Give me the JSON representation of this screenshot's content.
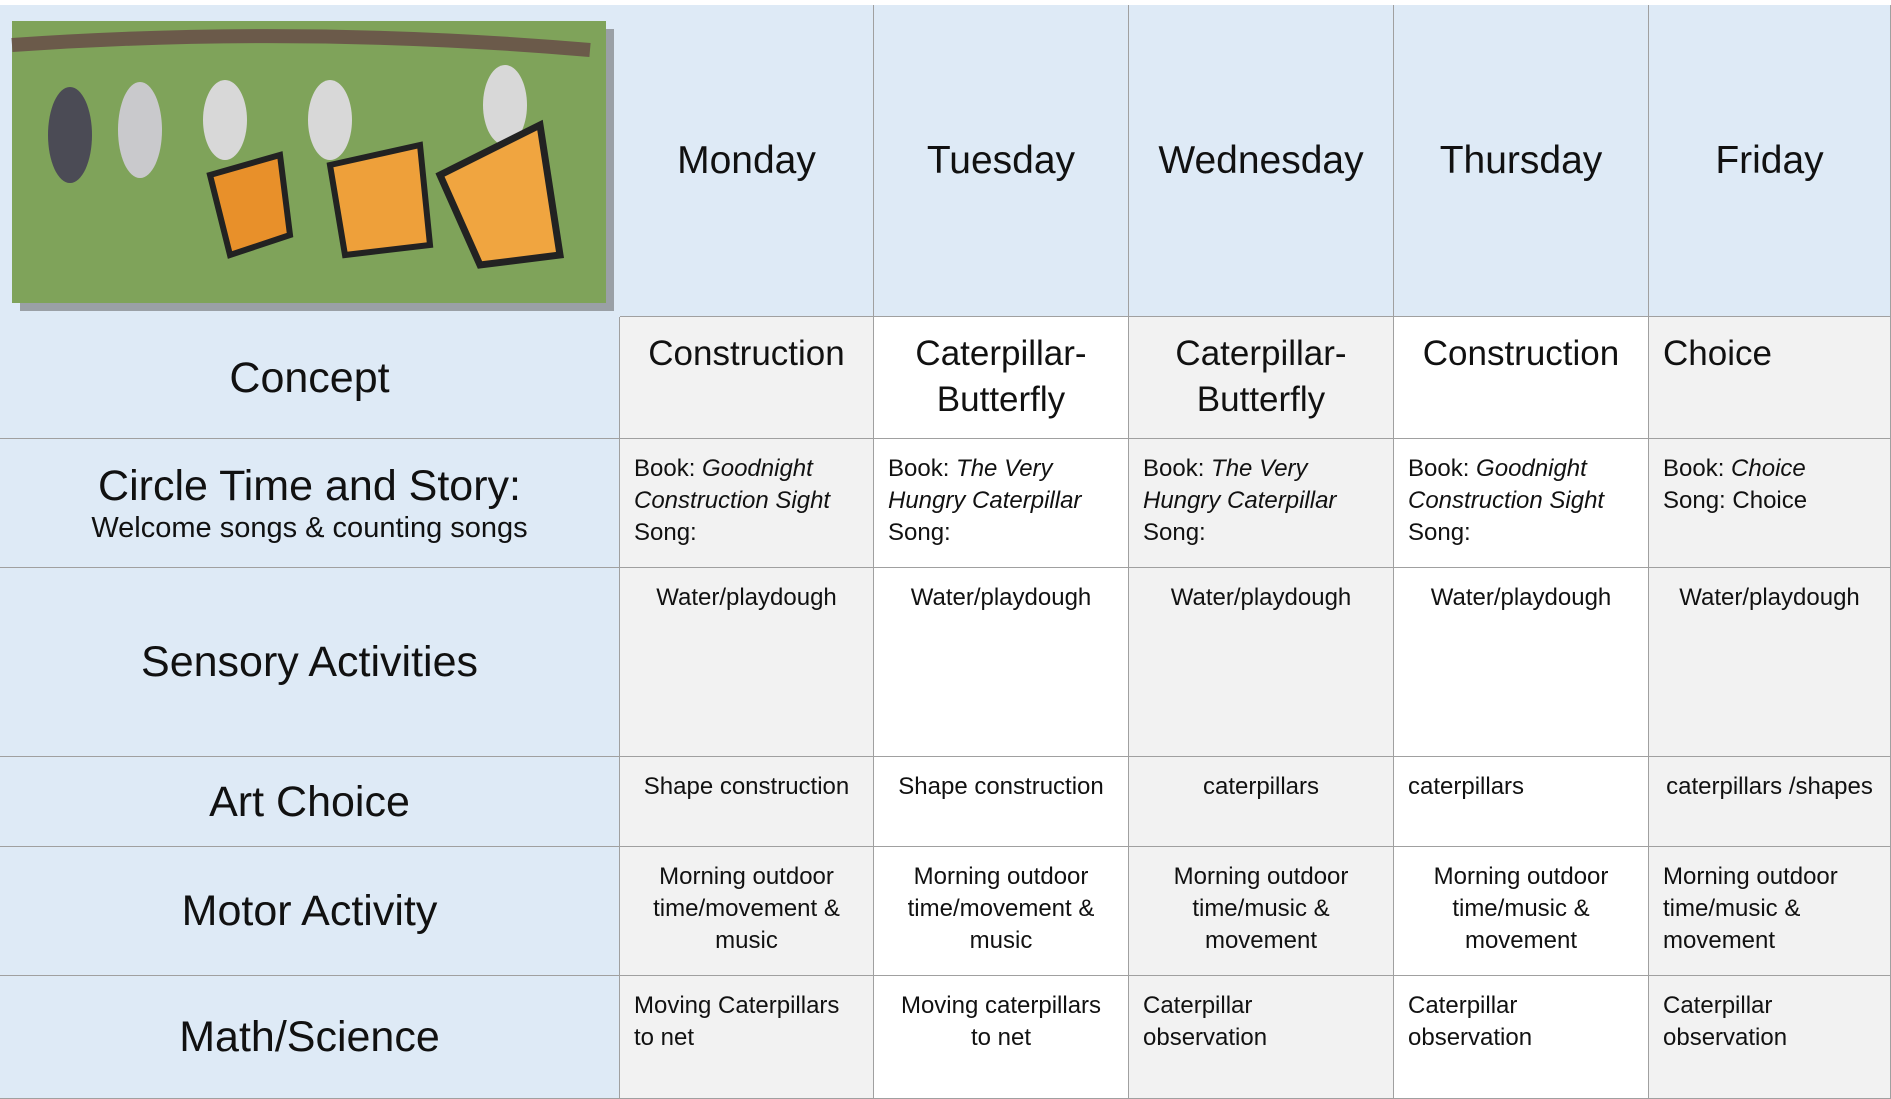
{
  "header": {
    "days": [
      "Monday",
      "Tuesday",
      "Wednesday",
      "Thursday",
      "Friday"
    ]
  },
  "rows": [
    {
      "label": "Concept",
      "cells": [
        "Construction",
        "Caterpillar-Butterfly",
        "Caterpillar-Butterfly",
        "Construction",
        "Choice"
      ]
    },
    {
      "label": "Circle Time and Story:",
      "sublabel": "Welcome songs & counting songs",
      "cells": [
        {
          "book_label": "Book:",
          "book": "Goodnight Construction Sight",
          "song_label": "Song:"
        },
        {
          "book_label": "Book:",
          "book": "The Very Hungry Caterpillar",
          "song_label": "Song:"
        },
        {
          "book_label": "Book:",
          "book": "The Very Hungry Caterpillar",
          "song_label": "Song:"
        },
        {
          "book_label": "Book:",
          "book": "Goodnight Construction Sight",
          "song_label": "Song:"
        },
        {
          "book_label": "Book:",
          "book": "Choice",
          "song_label": "Song:",
          "song": "Choice"
        }
      ]
    },
    {
      "label": "Sensory Activities",
      "cells": [
        "Water/playdough",
        "Water/playdough",
        "Water/playdough",
        "Water/playdough",
        "Water/playdough"
      ]
    },
    {
      "label": "Art Choice",
      "cells": [
        "Shape construction",
        "Shape construction",
        "caterpillars",
        "caterpillars",
        "caterpillars /shapes"
      ]
    },
    {
      "label": "Motor Activity",
      "cells": [
        "Morning outdoor time/movement & music",
        "Morning outdoor time/movement & music",
        "Morning outdoor time/music & movement",
        "Morning outdoor time/music & movement",
        "Morning outdoor time/music & movement"
      ]
    },
    {
      "label": "Math/Science",
      "cells": [
        "Moving Caterpillars to net",
        "Moving caterpillars to net",
        "Caterpillar observation",
        "Caterpillar observation",
        "Caterpillar observation"
      ]
    }
  ]
}
